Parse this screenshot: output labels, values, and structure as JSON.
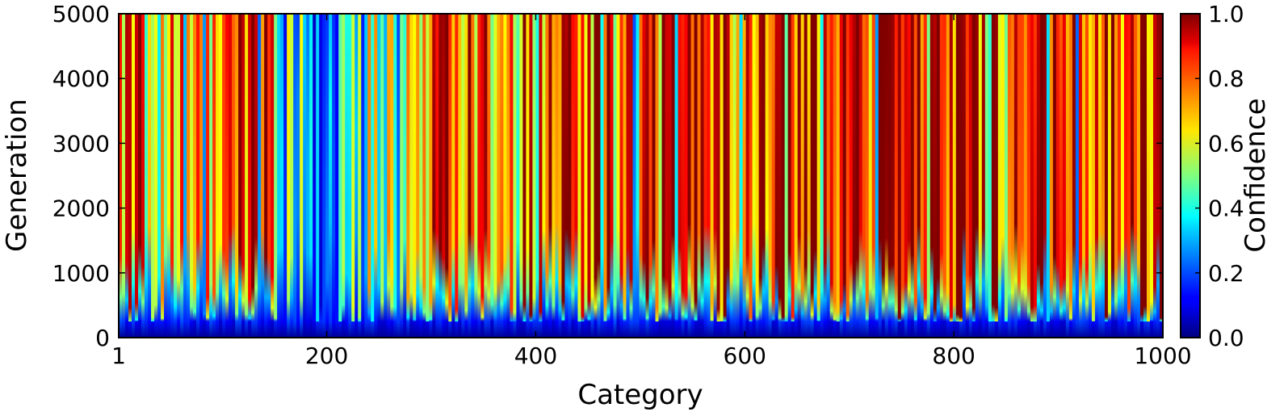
{
  "chart_data": {
    "type": "heatmap",
    "xlabel": "Category",
    "ylabel": "Generation",
    "colorbar_label": "Confidence",
    "xlim": [
      1,
      1000
    ],
    "ylim": [
      0,
      5000
    ],
    "clim": [
      0.0,
      1.0
    ],
    "colormap": "jet",
    "x_ticks": [
      {
        "value": 1,
        "label": "1"
      },
      {
        "value": 200,
        "label": "200"
      },
      {
        "value": 400,
        "label": "400"
      },
      {
        "value": 600,
        "label": "600"
      },
      {
        "value": 800,
        "label": "800"
      },
      {
        "value": 1000,
        "label": "1000"
      }
    ],
    "y_ticks": [
      {
        "value": 0,
        "label": "0"
      },
      {
        "value": 1000,
        "label": "1000"
      },
      {
        "value": 2000,
        "label": "2000"
      },
      {
        "value": 3000,
        "label": "3000"
      },
      {
        "value": 4000,
        "label": "4000"
      },
      {
        "value": 5000,
        "label": "5000"
      }
    ],
    "colorbar_ticks": [
      {
        "value": 0.0,
        "label": "0.0"
      },
      {
        "value": 0.2,
        "label": "0.2"
      },
      {
        "value": 0.4,
        "label": "0.4"
      },
      {
        "value": 0.6,
        "label": "0.6"
      },
      {
        "value": 0.8,
        "label": "0.8"
      },
      {
        "value": 1.0,
        "label": "1.0"
      }
    ],
    "regional_final_confidence": [
      {
        "x_range": [
          1,
          100
        ],
        "final_confidence": 0.75
      },
      {
        "x_range": [
          100,
          150
        ],
        "final_confidence": 0.85
      },
      {
        "x_range": [
          150,
          240
        ],
        "final_confidence": 0.35
      },
      {
        "x_range": [
          240,
          300
        ],
        "final_confidence": 0.5
      },
      {
        "x_range": [
          300,
          400
        ],
        "final_confidence": 0.8
      },
      {
        "x_range": [
          400,
          500
        ],
        "final_confidence": 0.85
      },
      {
        "x_range": [
          500,
          680
        ],
        "final_confidence": 0.88
      },
      {
        "x_range": [
          680,
          900
        ],
        "final_confidence": 0.92
      },
      {
        "x_range": [
          900,
          1000
        ],
        "final_confidence": 0.85
      }
    ]
  }
}
